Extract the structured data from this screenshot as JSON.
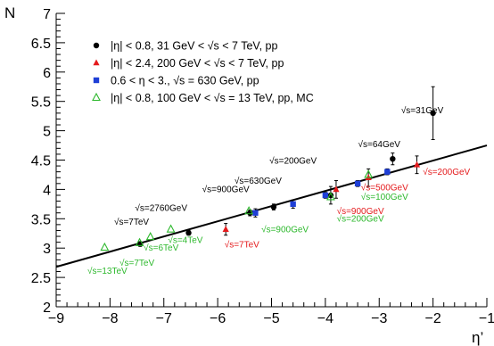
{
  "chart_data": {
    "type": "scatter",
    "title": "",
    "xlabel": "η’",
    "ylabel": "N",
    "xlim": [
      -9,
      -1
    ],
    "ylim": [
      2,
      7
    ],
    "xticks": [
      -9,
      -8,
      -7,
      -6,
      -5,
      -4,
      -3,
      -2,
      -1
    ],
    "xtick_labels": [
      "−9",
      "−8",
      "−7",
      "−6",
      "−5",
      "−4",
      "−3",
      "−2",
      "−1"
    ],
    "yticks": [
      2,
      2.5,
      3,
      3.5,
      4,
      4.5,
      5,
      5.5,
      6,
      6.5,
      7
    ],
    "ytick_labels": [
      "2",
      "2.5",
      "3",
      "3.5",
      "4",
      "4.5",
      "5",
      "5.5",
      "6",
      "6.5",
      "7"
    ],
    "grid": false,
    "legend_position": "top-left",
    "fit_line": {
      "x": [
        -9,
        -1
      ],
      "y": [
        2.68,
        4.75
      ],
      "color": "#000000"
    },
    "series": [
      {
        "name": "|η| < 0.8, 31 GeV < √s < 7 TeV, pp",
        "marker": "circle",
        "color": "#000000",
        "points": [
          {
            "x": -7.44,
            "y": 3.07,
            "err": 0.04
          },
          {
            "x": -6.54,
            "y": 3.26,
            "err": 0.04
          },
          {
            "x": -5.4,
            "y": 3.6,
            "err": 0.05
          },
          {
            "x": -4.96,
            "y": 3.7,
            "err": 0.05
          },
          {
            "x": -3.9,
            "y": 3.9,
            "err": 0.15
          },
          {
            "x": -2.75,
            "y": 4.52,
            "err": 0.1
          },
          {
            "x": -2.0,
            "y": 5.3,
            "err": 0.45
          }
        ]
      },
      {
        "name": "|η| < 2.4, 200 GeV < √s < 7 TeV, pp",
        "marker": "triangle",
        "color": "#e41a1c",
        "points": [
          {
            "x": -5.85,
            "y": 3.32,
            "err": 0.1
          },
          {
            "x": -3.8,
            "y": 4.0,
            "err": 0.15
          },
          {
            "x": -3.2,
            "y": 4.2,
            "err": 0.15
          },
          {
            "x": -2.3,
            "y": 4.42,
            "err": 0.15
          }
        ]
      },
      {
        "name": "0.6 < η < 3., √s = 630 GeV, pp",
        "marker": "square",
        "color": "#1f3fd6",
        "points": [
          {
            "x": -5.3,
            "y": 3.6,
            "err": 0.07
          },
          {
            "x": -4.6,
            "y": 3.75,
            "err": 0.07
          },
          {
            "x": -4.0,
            "y": 3.9,
            "err": 0.05
          },
          {
            "x": -3.4,
            "y": 4.1,
            "err": 0.05
          },
          {
            "x": -2.85,
            "y": 4.3,
            "err": 0.05
          }
        ]
      },
      {
        "name": "|η| < 0.8, 100 GeV < √s = 13 TeV, pp, MC",
        "marker": "open-triangle",
        "color": "#2db82d",
        "points": [
          {
            "x": -8.1,
            "y": 3.01
          },
          {
            "x": -7.45,
            "y": 3.09
          },
          {
            "x": -7.25,
            "y": 3.19
          },
          {
            "x": -6.87,
            "y": 3.32
          },
          {
            "x": -5.42,
            "y": 3.63
          },
          {
            "x": -3.9,
            "y": 3.87
          },
          {
            "x": -3.2,
            "y": 4.25
          }
        ]
      }
    ],
    "annotations": [
      {
        "text": "√s=31GeV",
        "x": -2.2,
        "y": 5.3,
        "color": "#000000"
      },
      {
        "text": "√s=64GeV",
        "x": -3.0,
        "y": 4.72,
        "color": "#000000"
      },
      {
        "text": "√s=200GeV",
        "x": -4.6,
        "y": 4.44,
        "color": "#000000"
      },
      {
        "text": "√s=630GeV",
        "x": -5.25,
        "y": 4.1,
        "color": "#000000"
      },
      {
        "text": "√s=900GeV",
        "x": -5.85,
        "y": 3.95,
        "color": "#000000"
      },
      {
        "text": "√s=2760GeV",
        "x": -7.05,
        "y": 3.63,
        "color": "#000000"
      },
      {
        "text": "√s=7TeV",
        "x": -7.6,
        "y": 3.4,
        "color": "#000000"
      },
      {
        "text": "√s=200GeV",
        "x": -1.75,
        "y": 4.25,
        "color": "#e41a1c"
      },
      {
        "text": "√s=500GeV",
        "x": -2.9,
        "y": 3.98,
        "color": "#e41a1c"
      },
      {
        "text": "√s=900GeV",
        "x": -3.35,
        "y": 3.58,
        "color": "#e41a1c"
      },
      {
        "text": "√s=7TeV",
        "x": -5.55,
        "y": 3.01,
        "color": "#e41a1c"
      },
      {
        "text": "√s=100GeV",
        "x": -2.9,
        "y": 3.82,
        "color": "#2db82d"
      },
      {
        "text": "√s=200GeV",
        "x": -3.35,
        "y": 3.45,
        "color": "#2db82d"
      },
      {
        "text": "√s=900GeV",
        "x": -4.75,
        "y": 3.27,
        "color": "#2db82d"
      },
      {
        "text": "√s=4TeV",
        "x": -6.6,
        "y": 3.09,
        "color": "#2db82d"
      },
      {
        "text": "√s=6TeV",
        "x": -7.05,
        "y": 2.96,
        "color": "#2db82d"
      },
      {
        "text": "√s=7TeV",
        "x": -7.5,
        "y": 2.7,
        "color": "#2db82d"
      },
      {
        "text": "√s=13TeV",
        "x": -8.05,
        "y": 2.56,
        "color": "#2db82d"
      }
    ]
  }
}
